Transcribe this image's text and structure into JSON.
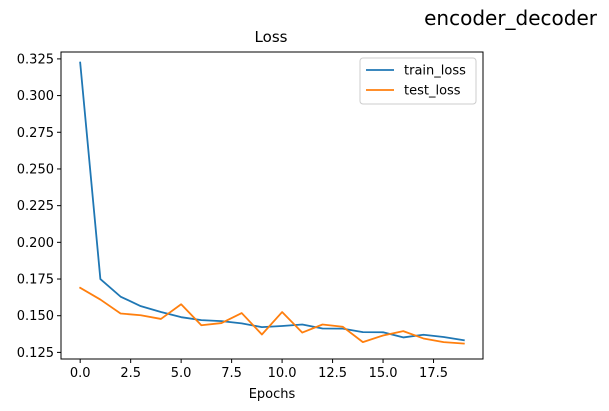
{
  "figure": {
    "suptitle": "encoder_decoder"
  },
  "chart_data": {
    "type": "line",
    "title": "Loss",
    "xlabel": "Epochs",
    "ylabel": "",
    "xlim": [
      -0.95,
      19.95
    ],
    "ylim": [
      0.1205,
      0.3297
    ],
    "xticks": [
      0.0,
      2.5,
      5.0,
      7.5,
      10.0,
      12.5,
      15.0,
      17.5
    ],
    "xtick_labels": [
      "0.0",
      "2.5",
      "5.0",
      "7.5",
      "10.0",
      "12.5",
      "15.0",
      "17.5"
    ],
    "yticks": [
      0.125,
      0.15,
      0.175,
      0.2,
      0.225,
      0.25,
      0.275,
      0.3,
      0.325
    ],
    "ytick_labels": [
      "0.125",
      "0.150",
      "0.175",
      "0.200",
      "0.225",
      "0.250",
      "0.275",
      "0.300",
      "0.325"
    ],
    "grid": false,
    "legend_position": "upper-right",
    "x": [
      0,
      1,
      2,
      3,
      4,
      5,
      6,
      7,
      8,
      9,
      10,
      11,
      12,
      13,
      14,
      15,
      16,
      17,
      18,
      19
    ],
    "series": [
      {
        "name": "train_loss",
        "color": "#1f77b4",
        "values": [
          0.3225,
          0.175,
          0.163,
          0.1565,
          0.1525,
          0.149,
          0.147,
          0.1463,
          0.1448,
          0.1422,
          0.143,
          0.144,
          0.1413,
          0.1412,
          0.1388,
          0.1387,
          0.1352,
          0.137,
          0.1355,
          0.1333
        ]
      },
      {
        "name": "test_loss",
        "color": "#ff7f0e",
        "values": [
          0.169,
          0.161,
          0.1515,
          0.1503,
          0.1478,
          0.1578,
          0.1435,
          0.145,
          0.1518,
          0.1372,
          0.1525,
          0.1385,
          0.144,
          0.1425,
          0.132,
          0.1365,
          0.1395,
          0.1345,
          0.132,
          0.131
        ]
      }
    ]
  }
}
